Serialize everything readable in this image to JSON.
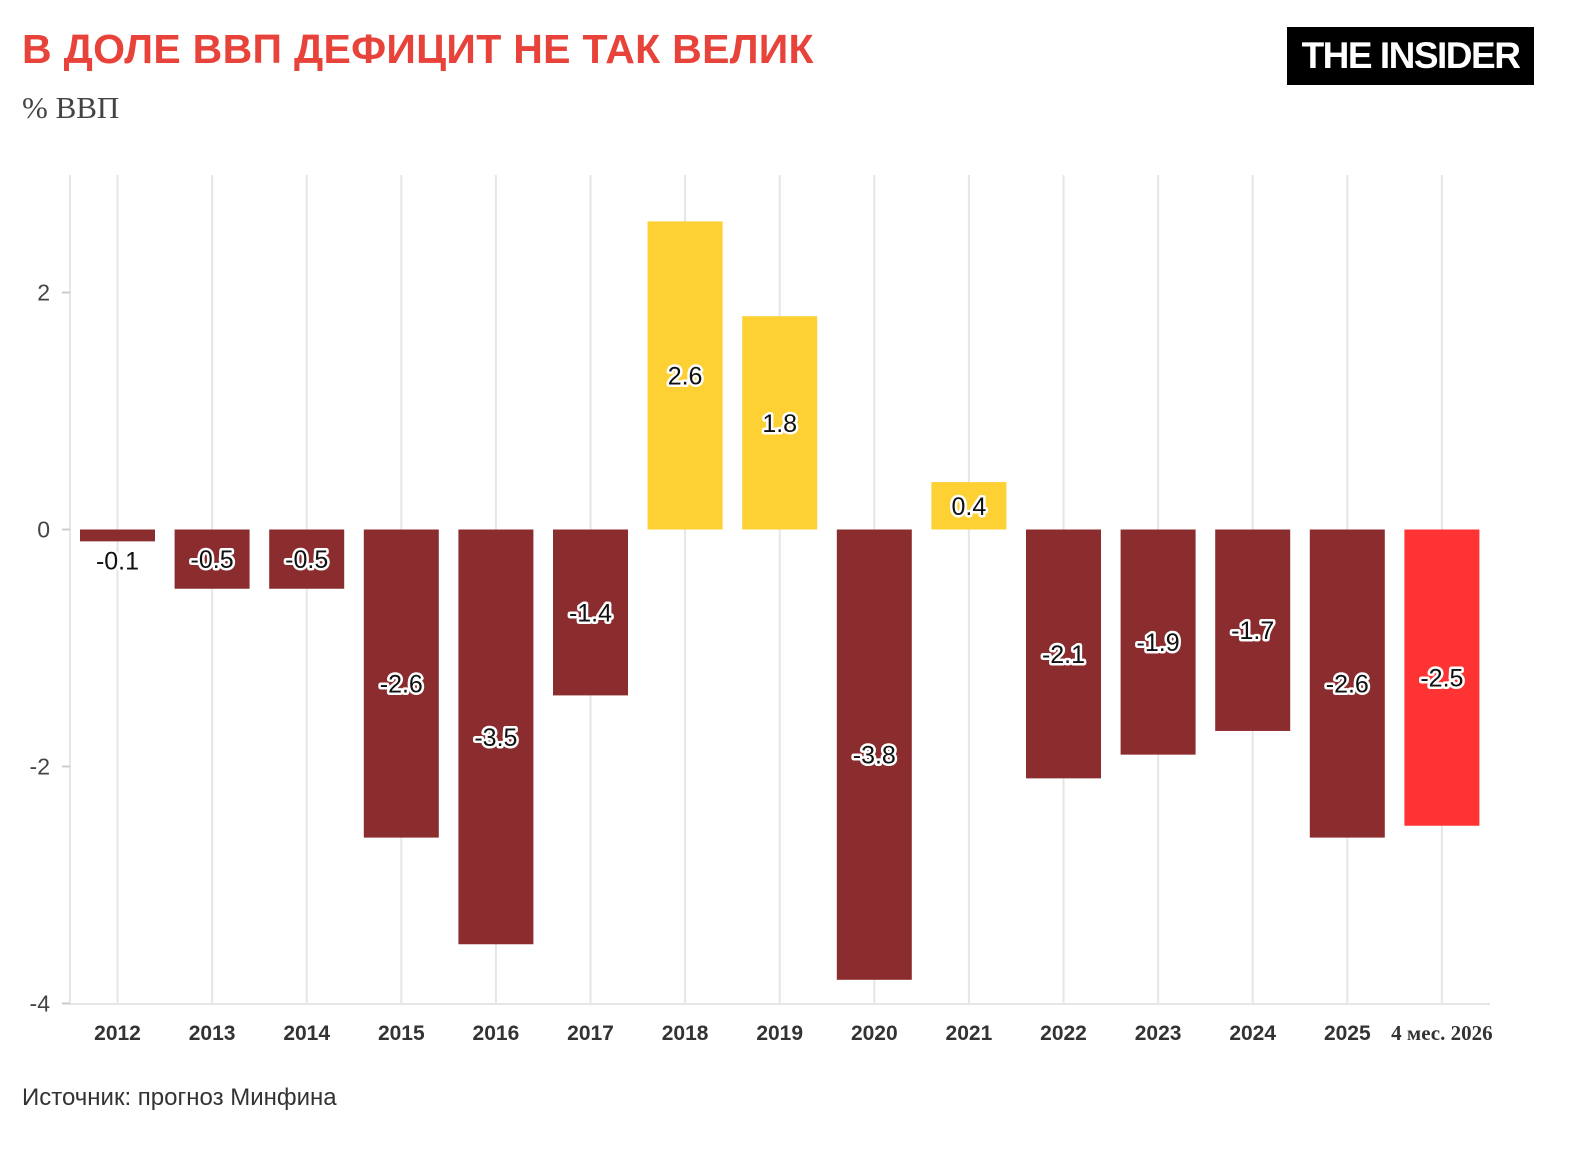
{
  "header": {
    "title": "В ДОЛЕ ВВП ДЕФИЦИТ НЕ ТАК ВЕЛИК",
    "subtitle": "% ВВП",
    "logo_text": "THE INSIDER"
  },
  "footer": {
    "source": "Источник: прогноз Минфина"
  },
  "colors": {
    "title": "#e8433a",
    "deficit": "#8b2c2e",
    "surplus": "#fdd033",
    "forecast": "#ff3333",
    "grid": "#e6e6e6"
  },
  "chart_data": {
    "type": "bar",
    "title": "В ДОЛЕ ВВП ДЕФИЦИТ НЕ ТАК ВЕЛИК",
    "subtitle": "% ВВП",
    "xlabel": "",
    "ylabel": "",
    "ylim": [
      -4,
      3
    ],
    "yticks": [
      2,
      0,
      -2,
      -4
    ],
    "ytick_labels": [
      "2",
      "0",
      "-2",
      "-4"
    ],
    "grid": true,
    "legend": "none",
    "categories": [
      "2012",
      "2013",
      "2014",
      "2015",
      "2016",
      "2017",
      "2018",
      "2019",
      "2020",
      "2021",
      "2022",
      "2023",
      "2024",
      "2025",
      "4 мес. 2026"
    ],
    "values": [
      -0.1,
      -0.5,
      -0.5,
      -2.6,
      -3.5,
      -1.4,
      2.6,
      1.8,
      -3.8,
      0.4,
      -2.1,
      -1.9,
      -1.7,
      -2.6,
      -2.5
    ],
    "value_labels": [
      "-0.1",
      "-0.5",
      "-0.5",
      "-2.6",
      "-3.5",
      "-1.4",
      "2.6",
      "1.8",
      "-3.8",
      "0.4",
      "-2.1",
      "-1.9",
      "-1.7",
      "-2.6",
      "-2.5"
    ],
    "bar_colors": [
      "#8b2c2e",
      "#8b2c2e",
      "#8b2c2e",
      "#8b2c2e",
      "#8b2c2e",
      "#8b2c2e",
      "#fdd033",
      "#fdd033",
      "#8b2c2e",
      "#fdd033",
      "#8b2c2e",
      "#8b2c2e",
      "#8b2c2e",
      "#8b2c2e",
      "#ff3333"
    ]
  }
}
